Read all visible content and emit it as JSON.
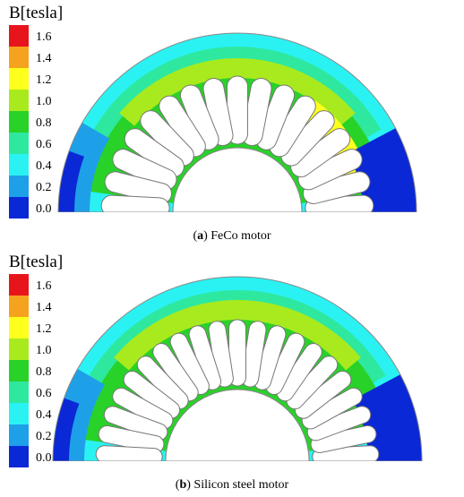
{
  "panels": [
    {
      "legend": {
        "title": "B[tesla]",
        "levels": [
          {
            "label": "1.6",
            "color": "#e8141c"
          },
          {
            "label": "1.4",
            "color": "#f5a21e"
          },
          {
            "label": "1.2",
            "color": "#ffff1e"
          },
          {
            "label": "1.0",
            "color": "#a8ea1e"
          },
          {
            "label": "0.8",
            "color": "#28d228"
          },
          {
            "label": "0.6",
            "color": "#2ee8a0"
          },
          {
            "label": "0.4",
            "color": "#2af2f2"
          },
          {
            "label": "0.2",
            "color": "#1ea0e8"
          },
          {
            "label": "0.0",
            "color": "#0a28d6"
          }
        ]
      },
      "caption": {
        "open": "(",
        "label": "a",
        "rest": ") FeCo motor"
      }
    },
    {
      "legend": {
        "title": "B[tesla]",
        "levels": [
          {
            "label": "1.6",
            "color": "#e8141c"
          },
          {
            "label": "1.4",
            "color": "#f5a21e"
          },
          {
            "label": "1.2",
            "color": "#ffff1e"
          },
          {
            "label": "1.0",
            "color": "#a8ea1e"
          },
          {
            "label": "0.8",
            "color": "#28d228"
          },
          {
            "label": "0.6",
            "color": "#2ee8a0"
          },
          {
            "label": "0.4",
            "color": "#2af2f2"
          },
          {
            "label": "0.2",
            "color": "#1ea0e8"
          },
          {
            "label": "0.0",
            "color": "#0a28d6"
          }
        ]
      },
      "caption": {
        "open": "(",
        "label": "b",
        "rest": ") Silicon steel motor"
      }
    }
  ]
}
